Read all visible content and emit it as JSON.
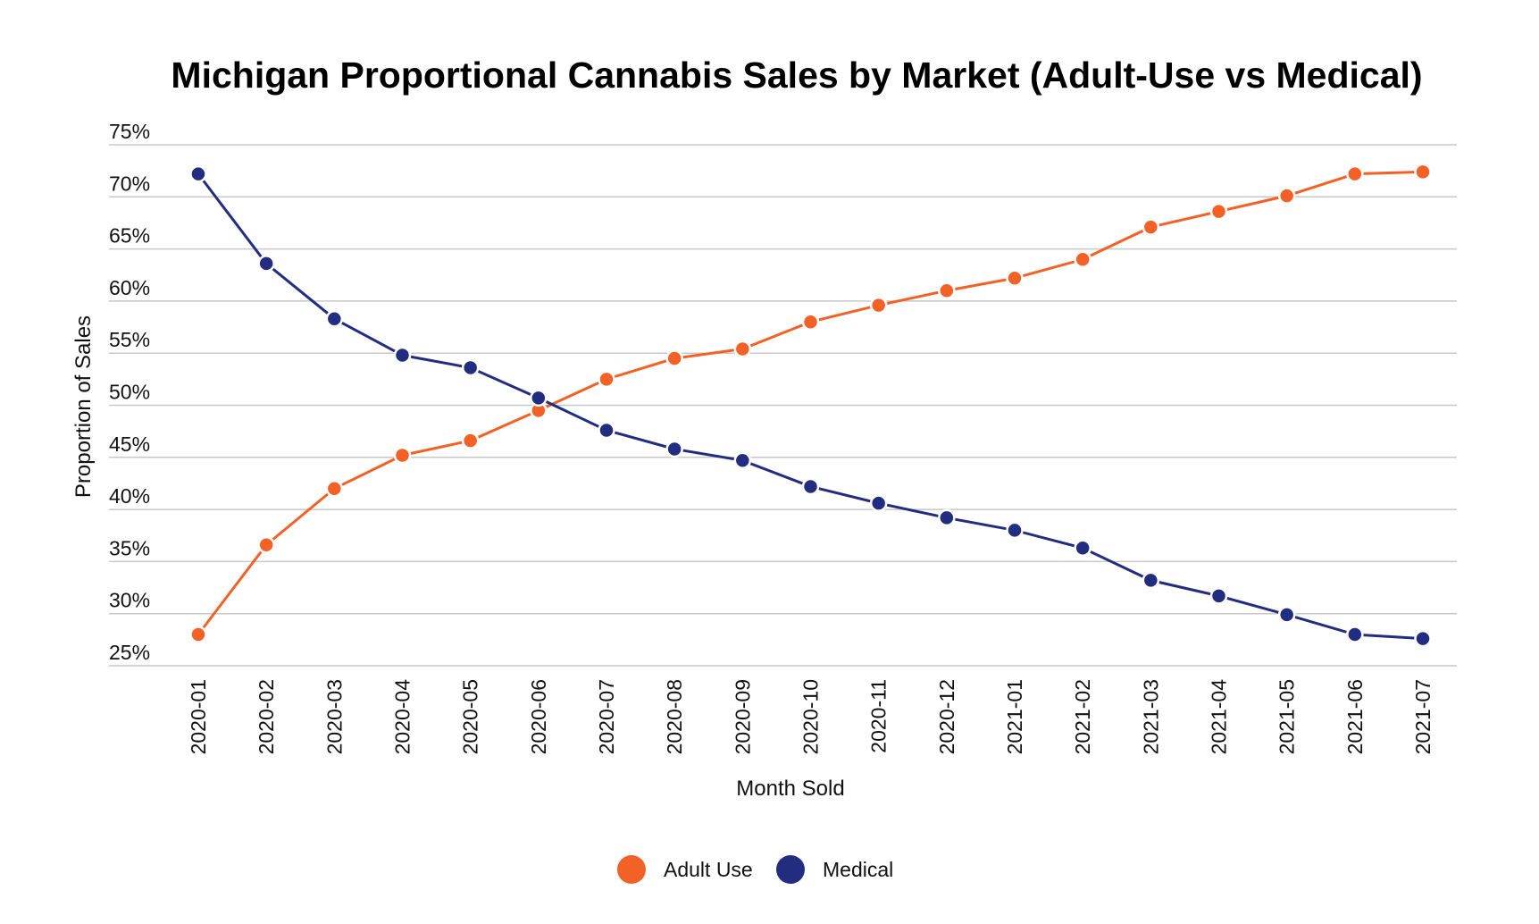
{
  "chart_data": {
    "type": "line",
    "title": "Michigan Proportional Cannabis Sales by Market (Adult-Use vs Medical)",
    "xlabel": "Month Sold",
    "ylabel": "Proportion of Sales",
    "ylim": [
      25,
      75
    ],
    "yticks": [
      25,
      30,
      35,
      40,
      45,
      50,
      55,
      60,
      65,
      70,
      75
    ],
    "ytick_suffix": "%",
    "grid": true,
    "legend_placement": "bottom",
    "categories": [
      "2020-01",
      "2020-02",
      "2020-03",
      "2020-04",
      "2020-05",
      "2020-06",
      "2020-07",
      "2020-08",
      "2020-09",
      "2020-10",
      "2020-11",
      "2020-12",
      "2021-01",
      "2021-02",
      "2021-03",
      "2021-04",
      "2021-05",
      "2021-06",
      "2021-07"
    ],
    "series": [
      {
        "name": "Adult Use",
        "color": "#F26125",
        "values": [
          28.0,
          36.6,
          42.0,
          45.2,
          46.6,
          49.5,
          52.5,
          54.5,
          55.4,
          58.0,
          59.6,
          61.0,
          62.2,
          64.0,
          67.1,
          68.6,
          70.1,
          72.2,
          72.4
        ]
      },
      {
        "name": "Medical",
        "color": "#232D7F",
        "values": [
          72.2,
          63.6,
          58.3,
          54.8,
          53.6,
          50.7,
          47.6,
          45.8,
          44.7,
          42.2,
          40.6,
          39.2,
          38.0,
          36.3,
          33.2,
          31.7,
          29.9,
          28.0,
          27.6
        ]
      }
    ]
  }
}
